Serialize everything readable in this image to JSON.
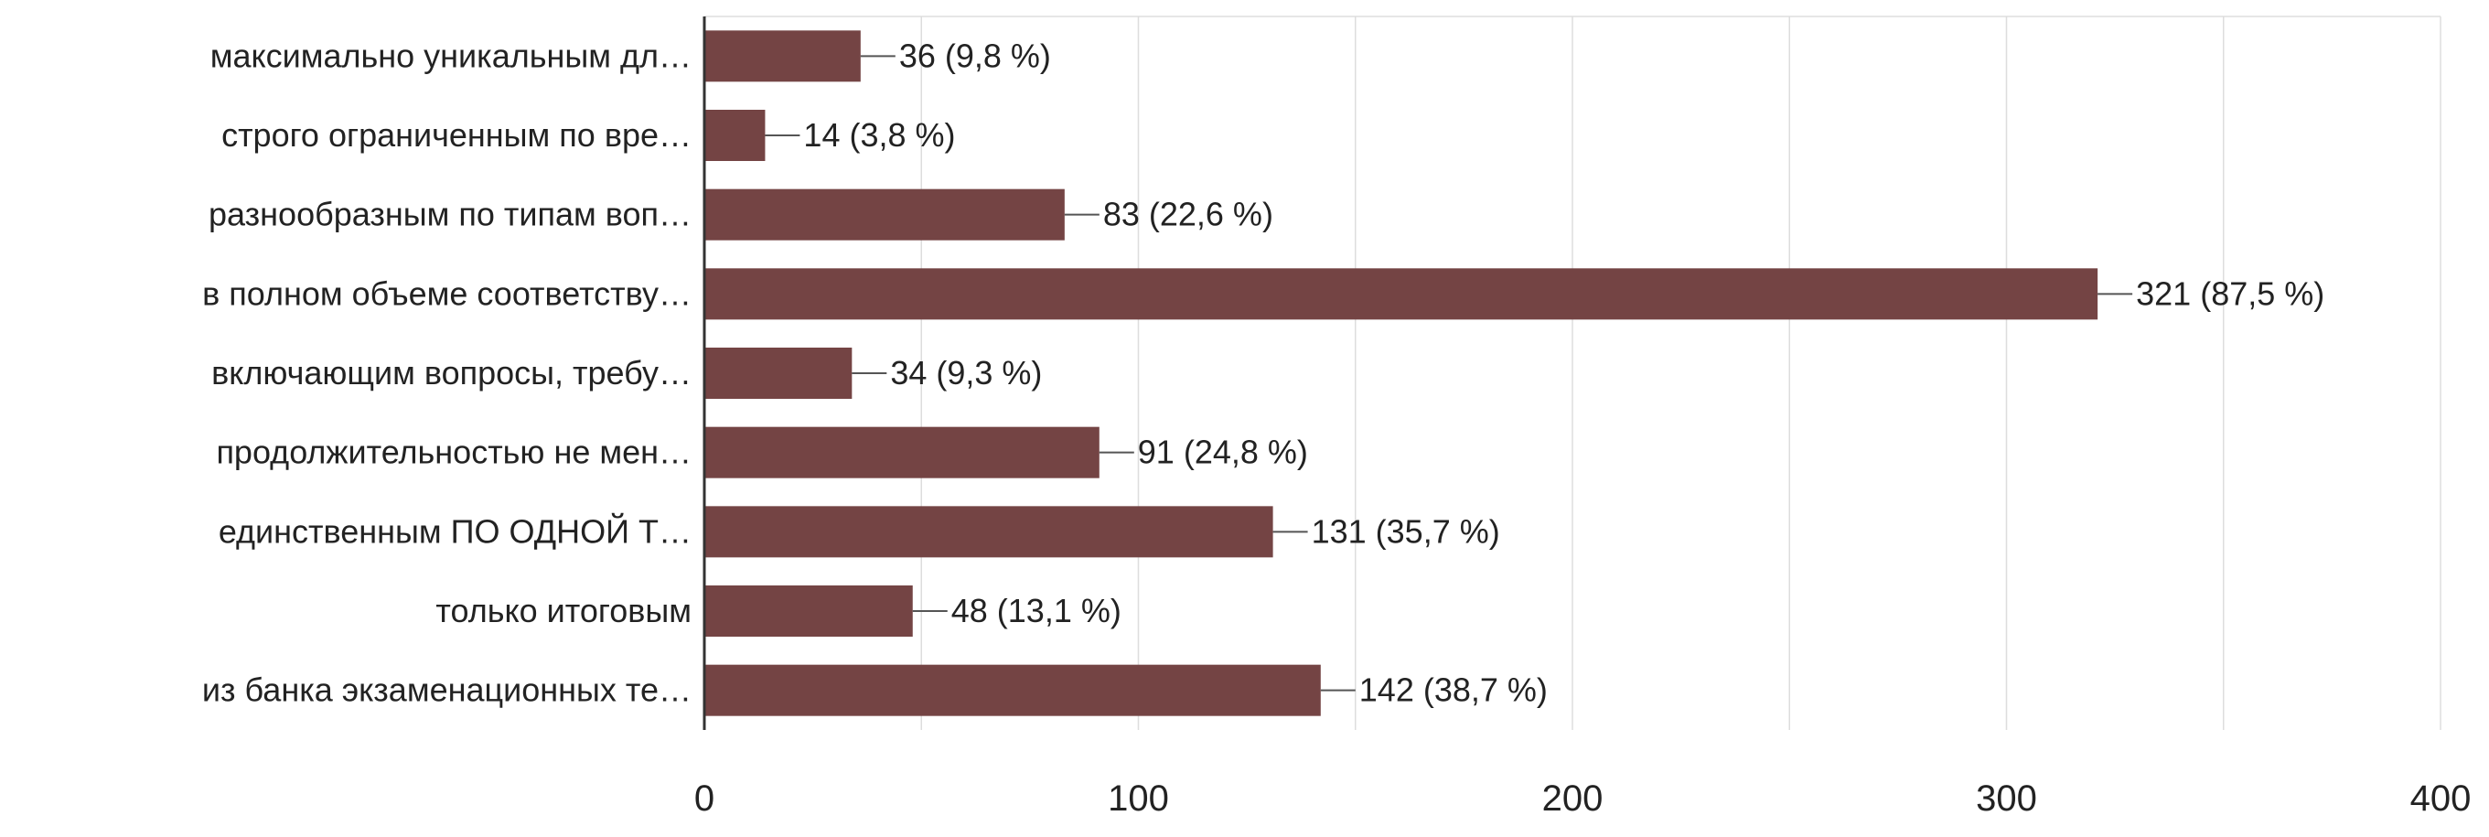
{
  "chart_data": {
    "type": "bar",
    "orientation": "horizontal",
    "categories": [
      "максимально уникальным дл…",
      "строго ограниченным по вре…",
      "разнообразным по типам воп…",
      "в полном объеме соответству…",
      "включающим вопросы, требу…",
      "продолжительностью не мен…",
      "единственным ПО ОДНОЙ Т…",
      "только итоговым",
      "из банка экзаменационных те…"
    ],
    "values": [
      36,
      14,
      83,
      321,
      34,
      91,
      131,
      48,
      142
    ],
    "data_labels": [
      "36 (9,8 %)",
      "14 (3,8 %)",
      "83 (22,6 %)",
      "321 (87,5 %)",
      "34 (9,3 %)",
      "91 (24,8 %)",
      "131 (35,7 %)",
      "48 (13,1 %)",
      "142 (38,7 %)"
    ],
    "xlim": [
      0,
      400
    ],
    "xticks": [
      0,
      100,
      200,
      300,
      400
    ],
    "xtick_labels": [
      "0",
      "100",
      "200",
      "300",
      "400"
    ],
    "grid": true,
    "bar_color": "#744444",
    "grid_color": "#dddddd",
    "axis_color": "#333333",
    "text_color": "#222222",
    "title": "",
    "xlabel": "",
    "ylabel": ""
  }
}
